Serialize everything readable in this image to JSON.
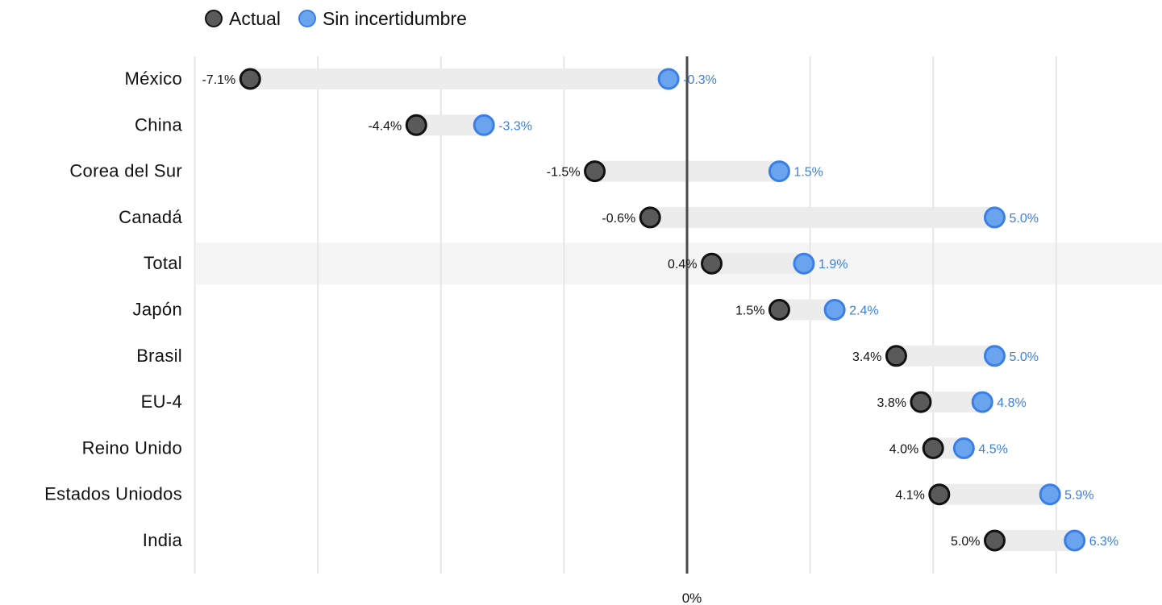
{
  "legend": {
    "actual": "Actual",
    "sin_incertidumbre": "Sin incertidumbre"
  },
  "colors": {
    "actual": "#5a5a5a",
    "actual_stroke": "#111111",
    "sin_incertidumbre": "#6aa3ee",
    "sin_incertidumbre_stroke": "#3a7fe6",
    "sin_label": "#3a7fe6",
    "bar": "#ececec",
    "grid": "#e6e6e6",
    "highlight": "#f5f5f5",
    "zero_line": "#4a4a4a"
  },
  "chart_data": {
    "type": "dumbbell",
    "categories": [
      "México",
      "China",
      "Corea del Sur",
      "Canadá",
      "Total",
      "Japón",
      "Brasil",
      "EU-4",
      "Reino Unido",
      "Estados Uniodos",
      "India"
    ],
    "series": [
      {
        "name": "Actual",
        "values": [
          -7.1,
          -4.4,
          -1.5,
          -0.6,
          0.4,
          1.5,
          3.4,
          3.8,
          4.0,
          4.1,
          5.0
        ],
        "labels": [
          "-7.1%",
          "-4.4%",
          "-1.5%",
          "-0.6%",
          "0.4%",
          "1.5%",
          "3.4%",
          "3.8%",
          "4.0%",
          "4.1%",
          "5.0%"
        ]
      },
      {
        "name": "Sin incertidumbre",
        "values": [
          -0.3,
          -3.3,
          1.5,
          5.0,
          1.9,
          2.4,
          5.0,
          4.8,
          4.5,
          5.9,
          6.3
        ],
        "labels": [
          "-0.3%",
          "-3.3%",
          "1.5%",
          "5.0%",
          "1.9%",
          "2.4%",
          "5.0%",
          "4.8%",
          "4.5%",
          "5.9%",
          "6.3%"
        ]
      }
    ],
    "highlight_category": "Total",
    "x_tick_label": "0%",
    "xlim": [
      -8,
      7.8
    ],
    "grid": true,
    "legend_position": "top-left"
  }
}
